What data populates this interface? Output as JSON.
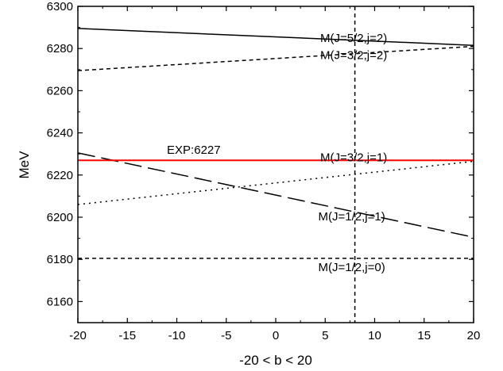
{
  "chart_data": {
    "type": "line",
    "xlabel": "-20 < b < 20",
    "ylabel": "MeV",
    "xlim": [
      -20,
      20
    ],
    "ylim": [
      6150,
      6300
    ],
    "xticks": [
      -20,
      -15,
      -10,
      -5,
      0,
      5,
      10,
      15,
      20
    ],
    "yticks": [
      6160,
      6180,
      6200,
      6220,
      6240,
      6260,
      6280,
      6300
    ],
    "grid": false,
    "series": [
      {
        "name": "M(J=5/2,j=2)",
        "style": "solid",
        "color": "#000000",
        "x": [
          -20,
          20
        ],
        "y": [
          6289.5,
          6281.5
        ]
      },
      {
        "name": "M(J=3/2,j=2)",
        "style": "dashed",
        "color": "#000000",
        "x": [
          -20,
          20
        ],
        "y": [
          6269.5,
          6281
        ]
      },
      {
        "name": "M(J=3/2,j=1)",
        "style": "dotted",
        "color": "#000000",
        "x": [
          -20,
          20
        ],
        "y": [
          6206,
          6226.5
        ]
      },
      {
        "name": "M(J=1/2,j=1)",
        "style": "long-dash",
        "color": "#000000",
        "x": [
          -20,
          20
        ],
        "y": [
          6230.5,
          6190.5
        ]
      },
      {
        "name": "M(J=1/2,j=0)",
        "style": "dashed",
        "color": "#000000",
        "x": [
          -20,
          20
        ],
        "y": [
          6180.5,
          6180.5
        ]
      },
      {
        "name": "EXP:6227",
        "style": "solid",
        "color": "#ff0000",
        "x": [
          -20,
          20
        ],
        "y": [
          6227,
          6227
        ]
      }
    ],
    "annotations": [
      {
        "text": "M(J=5/2,j=2)",
        "x": 4.5,
        "y": 6283
      },
      {
        "text": "M(J=3/2,j=2)",
        "x": 4.5,
        "y": 6275
      },
      {
        "text": "M(J=3/2,j=1)",
        "x": 4.5,
        "y": 6226.5
      },
      {
        "text": "M(J=1/2,j=1)",
        "x": 4.3,
        "y": 6198.5
      },
      {
        "text": "M(J=1/2,j=0)",
        "x": 4.3,
        "y": 6174.5
      },
      {
        "text": "EXP:6227",
        "x": -11,
        "y": 6230,
        "color": "#ff0000"
      }
    ],
    "vertical_line": {
      "x": 8,
      "style": "dashed"
    }
  }
}
